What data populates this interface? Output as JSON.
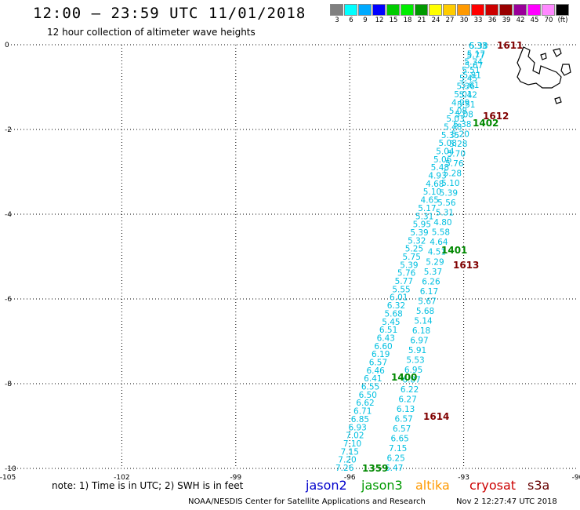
{
  "header": {
    "title": "12:00 – 23:59 UTC 11/01/2018",
    "subtitle": "12 hour collection of altimeter wave heights"
  },
  "color_scale": {
    "colors": [
      "#808080",
      "#00ffff",
      "#00aaff",
      "#0000ff",
      "#00cc00",
      "#00ee00",
      "#009900",
      "#ffff00",
      "#ffcc00",
      "#ff9900",
      "#ff0000",
      "#cc0000",
      "#990000",
      "#990099",
      "#ff00ff",
      "#ff88ff",
      "#000000"
    ],
    "labels": [
      "3",
      "6",
      "9",
      "12",
      "15",
      "18",
      "21",
      "24",
      "27",
      "30",
      "33",
      "36",
      "39",
      "42",
      "45",
      "70",
      "(ft)"
    ]
  },
  "axes": {
    "x_ticks": [
      "-105",
      "-102",
      "-99",
      "-96",
      "-93",
      "-90"
    ],
    "y_ticks": [
      "0",
      "-2",
      "-4",
      "-6",
      "-8",
      "-10"
    ]
  },
  "tracks": {
    "track1_values": [
      "5.38",
      "5.17",
      "5.34",
      "5.51",
      "5.45",
      "5.36",
      "5.01",
      "4.99",
      "5.08",
      "5.03",
      "5.48",
      "5.35",
      "5.08",
      "5.04",
      "5.06",
      "5.48",
      "4.93",
      "4.68",
      "5.10",
      "4.65",
      "5.17",
      "5.31",
      "5.95",
      "5.39",
      "5.32",
      "5.25",
      "5.75",
      "5.39",
      "5.76",
      "5.77",
      "5.55",
      "6.01",
      "6.32",
      "5.68",
      "5.45",
      "6.51",
      "6.43",
      "6.60",
      "6.19",
      "6.57",
      "6.46",
      "6.41",
      "6.55",
      "6.50",
      "6.62",
      "6.71",
      "6.85",
      "6.93",
      "7.02",
      "7.10",
      "7.15",
      "7.20",
      "7.26"
    ],
    "track2_values": [
      "6.33",
      "5.77",
      "5.67",
      "5.81",
      "5.61",
      "5.42",
      "5.51",
      "5.08",
      "5.38",
      "5.20",
      "5.28",
      "5.70",
      "5.76",
      "5.28",
      "5.10",
      "5.39",
      "5.56",
      "5.31",
      "4.80",
      "5.58",
      "4.64",
      "4.51",
      "5.29",
      "5.37",
      "6.26",
      "6.17",
      "5.67",
      "5.68",
      "5.14",
      "6.18",
      "6.97",
      "5.91",
      "5.53",
      "6.95",
      "6.87",
      "6.22",
      "6.27",
      "6.13",
      "6.57",
      "6.57",
      "6.65",
      "7.15",
      "6.25",
      "6.47"
    ],
    "time_labels_cryosat": [
      "1611",
      "1612",
      "1613",
      "1614"
    ],
    "time_labels_jason3": [
      "1402",
      "1401",
      "1400",
      "1359"
    ]
  },
  "legend": {
    "note": "note:  1) Time is in UTC;  2) SWH is in feet",
    "jason2": "jason2",
    "jason3": "jason3",
    "altika": "altika",
    "cryosat": "cryosat",
    "s3a": "s3a",
    "jason2_color": "#0000cc",
    "jason3_color": "#009900",
    "altika_color": "#ff9900",
    "cryosat_color": "#cc0000",
    "s3a_color": "#660000"
  },
  "footer": {
    "credit": "NOAA/NESDIS Center for Satellite Applications and Research",
    "date": "Nov  2 12:27:47 UTC 2018"
  }
}
